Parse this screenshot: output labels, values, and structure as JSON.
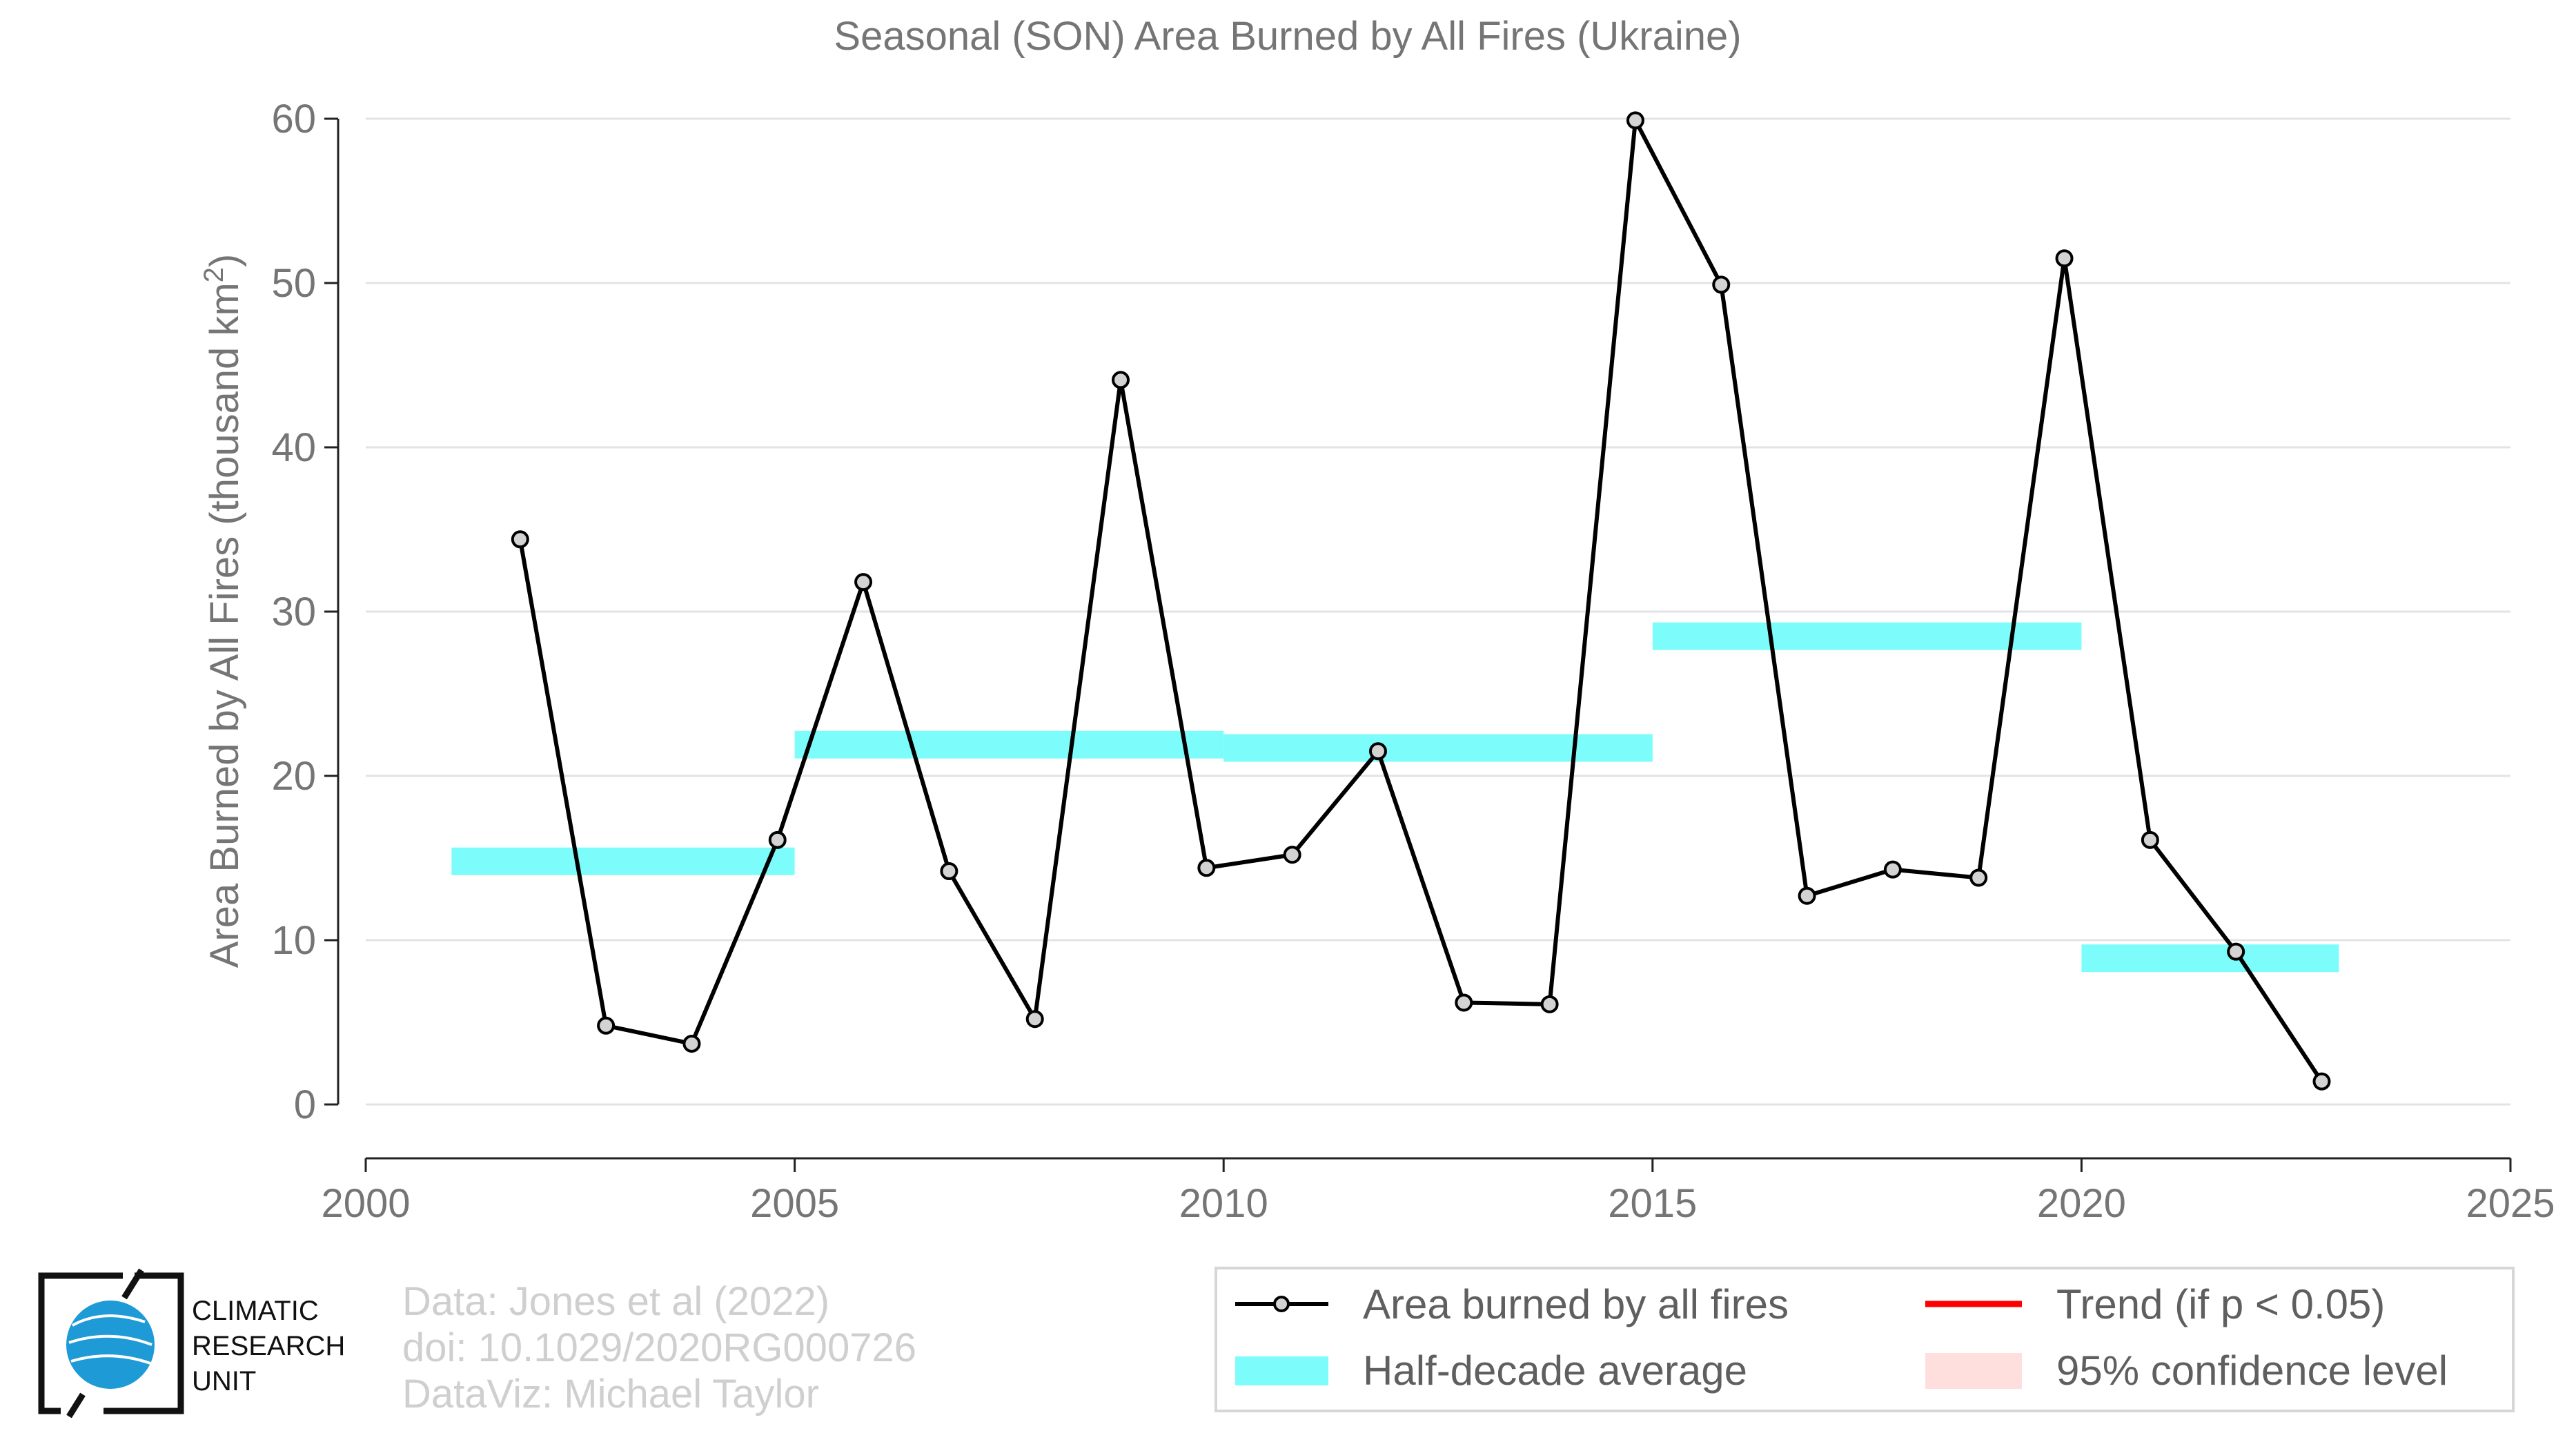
{
  "chart_data": {
    "type": "line",
    "title": "Seasonal (SON) Area Burned by All Fires (Ukraine)",
    "ylabel": "Area Burned by All Fires (thousand km",
    "ylabel_superscript": "2",
    "ylabel_close": ")",
    "xlabel": "",
    "xlim": [
      2000,
      2025
    ],
    "ylim": [
      0,
      60
    ],
    "xticks": [
      2000,
      2005,
      2010,
      2015,
      2020,
      2025
    ],
    "yticks": [
      0,
      10,
      20,
      30,
      40,
      50,
      60
    ],
    "grid": "horizontal",
    "legend_position": "bottom-right",
    "series": [
      {
        "name": "Area burned by all fires",
        "color": "#000000",
        "marker_fill": "#d3d3d3",
        "x": [
          2001.8,
          2002.8,
          2003.8,
          2004.8,
          2005.8,
          2006.8,
          2007.8,
          2008.8,
          2009.8,
          2010.8,
          2011.8,
          2012.8,
          2013.8,
          2014.8,
          2015.8,
          2016.8,
          2017.8,
          2018.8,
          2019.8,
          2020.8,
          2021.8,
          2022.8
        ],
        "y": [
          34.4,
          4.8,
          3.7,
          16.1,
          31.8,
          14.2,
          5.2,
          44.1,
          14.4,
          15.2,
          21.5,
          6.2,
          6.1,
          59.9,
          49.9,
          12.7,
          14.3,
          13.8,
          51.5,
          16.1,
          9.3,
          1.4
        ]
      }
    ],
    "half_decade_average": {
      "name": "Half-decade average",
      "color": "#7dfcfc",
      "segments": [
        {
          "x0": 2001.0,
          "x1": 2005.0,
          "y": 14.8
        },
        {
          "x0": 2005.0,
          "x1": 2010.0,
          "y": 21.9
        },
        {
          "x0": 2010.0,
          "x1": 2015.0,
          "y": 21.7
        },
        {
          "x0": 2015.0,
          "x1": 2020.0,
          "y": 28.5
        },
        {
          "x0": 2020.0,
          "x1": 2023.0,
          "y": 8.9
        }
      ]
    },
    "legend": [
      {
        "label": "Area burned by all fires",
        "kind": "line-marker",
        "color": "#000000"
      },
      {
        "label": "Trend (if p < 0.05)",
        "kind": "line",
        "color": "#ff0000"
      },
      {
        "label": "Half-decade average",
        "kind": "band",
        "color": "#7dfcfc"
      },
      {
        "label": "95% confidence level",
        "kind": "band",
        "color": "#ffdede"
      }
    ]
  },
  "credits": {
    "line1": "Data: Jones et al (2022)",
    "line2": "doi: 10.1029/2020RG000726",
    "line3": "DataViz: Michael Taylor"
  },
  "logo": {
    "line1": "CLIMATIC",
    "line2": "RESEARCH",
    "line3": "UNIT",
    "globe_color": "#1e9ad6"
  }
}
